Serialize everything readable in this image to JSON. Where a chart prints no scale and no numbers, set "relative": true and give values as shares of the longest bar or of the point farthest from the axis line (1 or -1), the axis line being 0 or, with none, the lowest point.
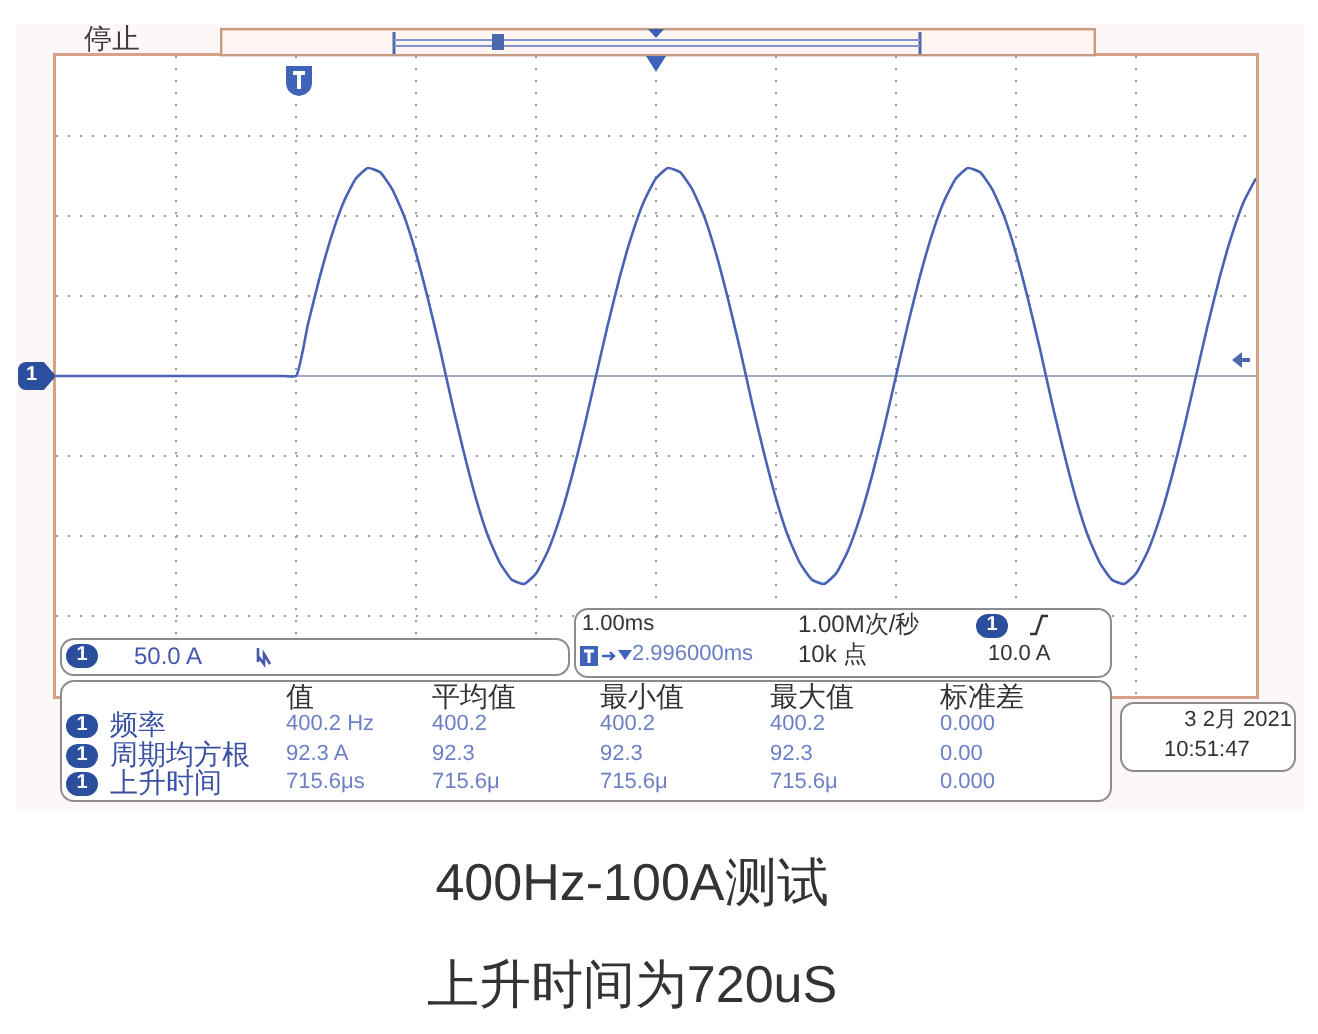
{
  "chart_data": {
    "type": "line",
    "relative": true,
    "categories": [
      null,
      null,
      null,
      null,
      null,
      null,
      null,
      null,
      null,
      null,
      null,
      null,
      null,
      null,
      null,
      null,
      null,
      null,
      null,
      null,
      null,
      null,
      null,
      null,
      null,
      null,
      null,
      null,
      null,
      null,
      null,
      null,
      null,
      null,
      null,
      null,
      null,
      null,
      null,
      null,
      null,
      null,
      null,
      null,
      null,
      null,
      null,
      null,
      null,
      null,
      null,
      null,
      null,
      null,
      null,
      null,
      null,
      null,
      null,
      null,
      null,
      null,
      null,
      null,
      null,
      null,
      null,
      null,
      null,
      null,
      null,
      null,
      null,
      null,
      null,
      null,
      null,
      null,
      null,
      null,
      null,
      null,
      null,
      null,
      null,
      null,
      null,
      null,
      null,
      null,
      null,
      null,
      null,
      null,
      null,
      null,
      null,
      null,
      null,
      null,
      null
    ],
    "values": [
      0,
      0,
      0,
      0,
      0,
      0,
      0,
      0,
      0,
      0,
      0,
      0,
      0,
      0,
      0,
      0,
      0,
      0,
      0,
      0,
      0,
      0.25,
      0.48,
      0.68,
      0.84,
      0.95,
      1,
      0.98,
      0.9,
      0.77,
      0.59,
      0.37,
      0.13,
      -0.13,
      -0.37,
      -0.59,
      -0.77,
      -0.9,
      -0.98,
      -1,
      -0.95,
      -0.84,
      -0.68,
      -0.48,
      -0.25,
      0,
      0.25,
      0.48,
      0.68,
      0.84,
      0.95,
      1,
      0.98,
      0.9,
      0.77,
      0.59,
      0.37,
      0.13,
      -0.13,
      -0.37,
      -0.59,
      -0.77,
      -0.9,
      -0.98,
      -1,
      -0.95,
      -0.84,
      -0.68,
      -0.48,
      -0.25,
      0,
      0.25,
      0.48,
      0.68,
      0.84,
      0.95,
      1,
      0.98,
      0.9,
      0.77,
      0.59,
      0.37,
      0.13,
      -0.13,
      -0.37,
      -0.59,
      -0.77,
      -0.9,
      -0.98,
      -1,
      -0.95,
      -0.84,
      -0.68,
      -0.48,
      -0.25,
      0,
      0.25,
      0.48,
      0.68,
      0.84,
      0.95
    ],
    "color": "#4862b4",
    "grid": true,
    "line_style": "solid",
    "annotations": [
      "停止",
      "1",
      "1",
      "50.0 A",
      "1.00ms",
      "1.00M次/秒",
      "1",
      "2.996000ms",
      "10k 点",
      "10.0 A",
      "值",
      "平均值",
      "最小值",
      "最大值",
      "标准差",
      "1",
      "频率",
      "400.2 Hz",
      "400.2",
      "400.2",
      "400.2",
      "0.000",
      "1",
      "周期均方根",
      "92.3 A",
      "92.3",
      "92.3",
      "92.3",
      "0.00",
      "1",
      "上升时间",
      "715.6μs",
      "715.6μ",
      "715.6μ",
      "715.6μ",
      "0.000",
      "3 2月 2021",
      "10:51:47",
      "400Hz-100A测试",
      "上升时间为720uS"
    ]
  }
}
